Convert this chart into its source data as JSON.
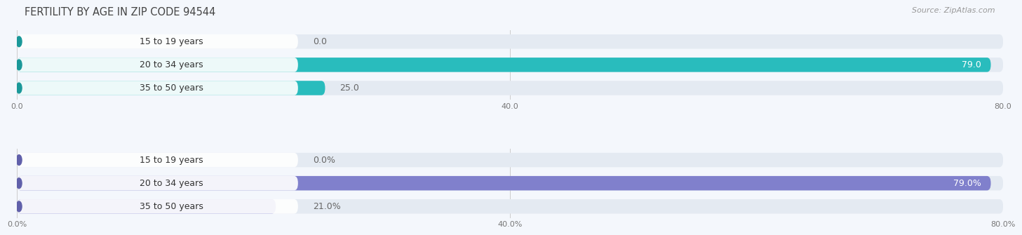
{
  "title": "FERTILITY BY AGE IN ZIP CODE 94544",
  "source": "Source: ZipAtlas.com",
  "charts": [
    {
      "categories": [
        "15 to 19 years",
        "20 to 34 years",
        "35 to 50 years"
      ],
      "values": [
        0.0,
        79.0,
        25.0
      ],
      "max_value": 80.0,
      "tick_values": [
        0.0,
        40.0,
        80.0
      ],
      "tick_labels": [
        "0.0",
        "40.0",
        "80.0"
      ],
      "bar_fill_color": "#29bcbd",
      "bar_bg_color": "#e4eaf2",
      "bar_accent_color": "#1a9899",
      "value_suffix": "",
      "val_inside_color": "#ffffff",
      "val_outside_color": "#666666"
    },
    {
      "categories": [
        "15 to 19 years",
        "20 to 34 years",
        "35 to 50 years"
      ],
      "values": [
        0.0,
        79.0,
        21.0
      ],
      "max_value": 80.0,
      "tick_values": [
        0.0,
        40.0,
        80.0
      ],
      "tick_labels": [
        "0.0%",
        "40.0%",
        "80.0%"
      ],
      "bar_fill_color": "#8080cc",
      "bar_bg_color": "#e4eaf2",
      "bar_accent_color": "#6060aa",
      "value_suffix": "%",
      "val_inside_color": "#ffffff",
      "val_outside_color": "#666666"
    }
  ],
  "background_color": "#f4f7fc",
  "title_fontsize": 10.5,
  "label_fontsize": 9,
  "tick_fontsize": 8,
  "source_fontsize": 8,
  "bar_height": 0.62
}
